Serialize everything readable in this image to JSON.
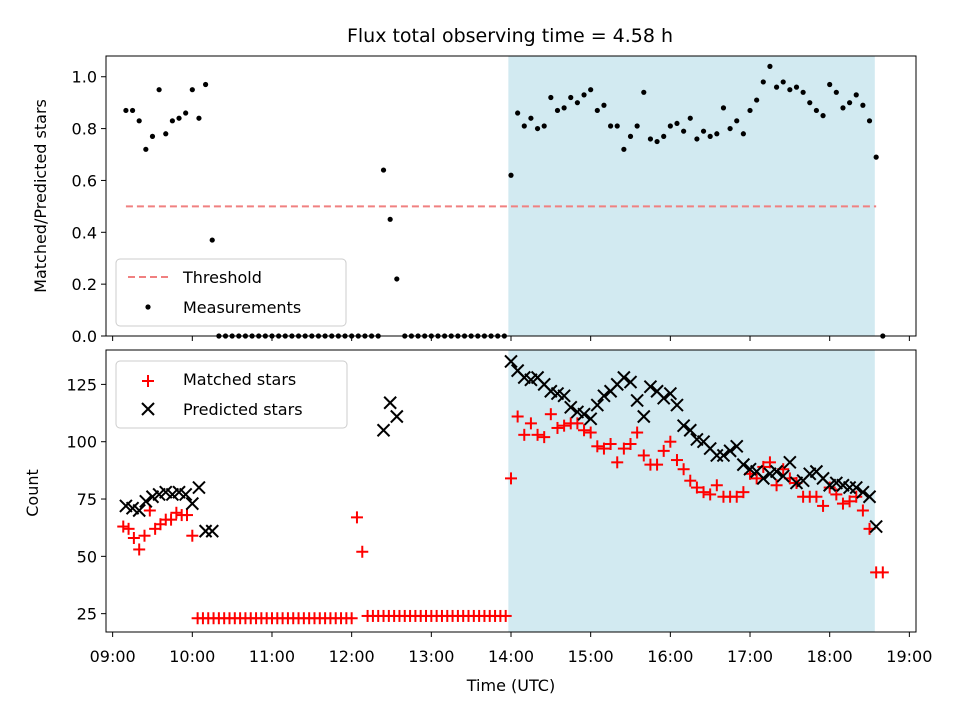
{
  "chart_data": [
    {
      "type": "scatter",
      "title": "Flux total observing time = 4.58 h",
      "xlabel": "",
      "ylabel": "Matched/Predicted stars",
      "xlim": [
        "08:55",
        "19:05"
      ],
      "ylim": [
        0,
        1.08
      ],
      "yticks": [
        "0.0",
        "0.2",
        "0.4",
        "0.6",
        "0.8",
        "1.0"
      ],
      "shaded_region": [
        "13:58",
        "18:34"
      ],
      "shade_color": "#add8e6",
      "legend": "lower-left",
      "threshold": {
        "name": "Threshold",
        "y": 0.5,
        "x_range": [
          "09:10",
          "18:35"
        ],
        "color": "#f08080"
      },
      "series": [
        {
          "name": "Measurements",
          "color": "#000000",
          "x": [
            "09:10",
            "09:15",
            "09:20",
            "09:25",
            "09:30",
            "09:35",
            "09:40",
            "09:45",
            "09:50",
            "09:55",
            "10:00",
            "10:05",
            "10:10",
            "10:15",
            "10:20",
            "10:25",
            "10:30",
            "10:35",
            "10:40",
            "10:45",
            "10:50",
            "10:55",
            "11:00",
            "11:05",
            "11:10",
            "11:15",
            "11:20",
            "11:25",
            "11:30",
            "11:35",
            "11:40",
            "11:45",
            "11:50",
            "11:55",
            "12:00",
            "12:05",
            "12:10",
            "12:15",
            "12:20",
            "12:24",
            "12:29",
            "12:34",
            "12:40",
            "12:45",
            "12:50",
            "12:55",
            "13:00",
            "13:05",
            "13:10",
            "13:15",
            "13:20",
            "13:25",
            "13:30",
            "13:35",
            "13:40",
            "13:45",
            "13:50",
            "13:55",
            "14:00",
            "14:05",
            "14:10",
            "14:15",
            "14:20",
            "14:25",
            "14:30",
            "14:35",
            "14:40",
            "14:45",
            "14:50",
            "14:55",
            "15:00",
            "15:05",
            "15:10",
            "15:15",
            "15:20",
            "15:25",
            "15:30",
            "15:35",
            "15:40",
            "15:45",
            "15:50",
            "15:55",
            "16:00",
            "16:05",
            "16:10",
            "16:15",
            "16:20",
            "16:25",
            "16:30",
            "16:35",
            "16:40",
            "16:45",
            "16:50",
            "16:55",
            "17:00",
            "17:05",
            "17:10",
            "17:15",
            "17:20",
            "17:25",
            "17:30",
            "17:35",
            "17:40",
            "17:45",
            "17:50",
            "17:55",
            "18:00",
            "18:05",
            "18:10",
            "18:15",
            "18:20",
            "18:25",
            "18:30",
            "18:35",
            "18:40"
          ],
          "y": [
            0.87,
            0.87,
            0.83,
            0.72,
            0.77,
            0.95,
            0.78,
            0.83,
            0.84,
            0.86,
            0.95,
            0.84,
            0.97,
            0.37,
            0,
            0,
            0,
            0,
            0,
            0,
            0,
            0,
            0,
            0,
            0,
            0,
            0,
            0,
            0,
            0,
            0,
            0,
            0,
            0,
            0,
            0,
            0,
            0,
            0,
            0.64,
            0.45,
            0.22,
            0,
            0,
            0,
            0,
            0,
            0,
            0,
            0,
            0,
            0,
            0,
            0,
            0,
            0,
            0,
            0,
            0.62,
            0.86,
            0.81,
            0.84,
            0.8,
            0.81,
            0.92,
            0.87,
            0.88,
            0.92,
            0.9,
            0.93,
            0.95,
            0.87,
            0.89,
            0.81,
            0.81,
            0.72,
            0.77,
            0.81,
            0.94,
            0.76,
            0.75,
            0.77,
            0.81,
            0.82,
            0.79,
            0.84,
            0.76,
            0.79,
            0.77,
            0.78,
            0.88,
            0.8,
            0.83,
            0.78,
            0.87,
            0.91,
            0.98,
            1.04,
            0.96,
            0.98,
            0.95,
            0.96,
            0.94,
            0.9,
            0.87,
            0.85,
            0.97,
            0.94,
            0.88,
            0.9,
            0.93,
            0.89,
            0.83,
            0.69,
            0
          ]
        }
      ]
    },
    {
      "type": "scatter",
      "title": "",
      "xlabel": "Time (UTC)",
      "ylabel": "Count",
      "xlim": [
        "08:55",
        "19:05"
      ],
      "ylim": [
        17,
        140
      ],
      "xticks": [
        "09:00",
        "10:00",
        "11:00",
        "12:00",
        "13:00",
        "14:00",
        "15:00",
        "16:00",
        "17:00",
        "18:00",
        "19:00"
      ],
      "yticks": [
        "25",
        "50",
        "75",
        "100",
        "125"
      ],
      "shaded_region": [
        "13:58",
        "18:34"
      ],
      "shade_color": "#add8e6",
      "legend": "upper-left",
      "series": [
        {
          "name": "Matched stars",
          "color": "#ff0000",
          "marker": "plus",
          "x": [
            "09:08",
            "09:12",
            "09:16",
            "09:20",
            "09:24",
            "09:28",
            "09:32",
            "09:36",
            "09:40",
            "09:44",
            "09:48",
            "09:52",
            "09:56",
            "10:00",
            "10:04",
            "10:08",
            "10:12",
            "10:16",
            "10:20",
            "10:24",
            "10:28",
            "10:32",
            "10:36",
            "10:40",
            "10:44",
            "10:48",
            "10:52",
            "10:56",
            "11:00",
            "11:04",
            "11:08",
            "11:12",
            "11:16",
            "11:20",
            "11:24",
            "11:28",
            "11:32",
            "11:36",
            "11:40",
            "11:44",
            "11:48",
            "11:52",
            "11:56",
            "12:00",
            "12:04",
            "12:08",
            "12:12",
            "12:16",
            "12:20",
            "12:24",
            "12:28",
            "12:32",
            "12:36",
            "12:40",
            "12:44",
            "12:48",
            "12:52",
            "12:56",
            "13:00",
            "13:04",
            "13:08",
            "13:12",
            "13:16",
            "13:20",
            "13:24",
            "13:28",
            "13:32",
            "13:36",
            "13:40",
            "13:44",
            "13:48",
            "13:52",
            "13:56",
            "14:00",
            "14:05",
            "14:10",
            "14:15",
            "14:20",
            "14:25",
            "14:30",
            "14:35",
            "14:40",
            "14:45",
            "14:50",
            "14:55",
            "15:00",
            "15:05",
            "15:10",
            "15:15",
            "15:20",
            "15:25",
            "15:30",
            "15:35",
            "15:40",
            "15:45",
            "15:50",
            "15:55",
            "16:00",
            "16:05",
            "16:10",
            "16:15",
            "16:20",
            "16:25",
            "16:30",
            "16:35",
            "16:40",
            "16:45",
            "16:50",
            "16:55",
            "17:00",
            "17:05",
            "17:10",
            "17:15",
            "17:20",
            "17:25",
            "17:30",
            "17:35",
            "17:40",
            "17:45",
            "17:50",
            "17:55",
            "18:00",
            "18:05",
            "18:10",
            "18:15",
            "18:20",
            "18:25",
            "18:30",
            "18:35",
            "18:40"
          ],
          "y": [
            63,
            62,
            58,
            53,
            59,
            70,
            62,
            64,
            66,
            66,
            69,
            68,
            68,
            59,
            23,
            23,
            23,
            23,
            23,
            23,
            23,
            23,
            23,
            23,
            23,
            23,
            23,
            23,
            23,
            23,
            23,
            23,
            23,
            23,
            23,
            23,
            23,
            23,
            23,
            23,
            23,
            23,
            23,
            23,
            67,
            52,
            24,
            24,
            24,
            24,
            24,
            24,
            24,
            24,
            24,
            24,
            24,
            24,
            24,
            24,
            24,
            24,
            24,
            24,
            24,
            24,
            24,
            24,
            24,
            24,
            24,
            24,
            24,
            84,
            111,
            103,
            108,
            103,
            102,
            112,
            106,
            107,
            108,
            108,
            105,
            104,
            98,
            97,
            99,
            91,
            97,
            99,
            104,
            94,
            90,
            90,
            96,
            100,
            92,
            88,
            83,
            80,
            78,
            77,
            81,
            76,
            76,
            76,
            78,
            86,
            84,
            89,
            91,
            81,
            88,
            84,
            82,
            76,
            76,
            76,
            72,
            80,
            77,
            73,
            74,
            76,
            70,
            62,
            43,
            43
          ]
        },
        {
          "name": "Predicted stars",
          "color": "#000000",
          "marker": "x",
          "x": [
            "09:10",
            "09:15",
            "09:20",
            "09:25",
            "09:30",
            "09:35",
            "09:40",
            "09:45",
            "09:50",
            "09:55",
            "10:00",
            "10:05",
            "10:10",
            "10:15",
            "12:24",
            "12:29",
            "12:34",
            "14:00",
            "14:05",
            "14:10",
            "14:15",
            "14:20",
            "14:25",
            "14:30",
            "14:35",
            "14:40",
            "14:45",
            "14:50",
            "14:55",
            "15:00",
            "15:05",
            "15:10",
            "15:15",
            "15:20",
            "15:25",
            "15:30",
            "15:35",
            "15:40",
            "15:45",
            "15:50",
            "15:55",
            "16:00",
            "16:05",
            "16:10",
            "16:15",
            "16:20",
            "16:25",
            "16:30",
            "16:35",
            "16:40",
            "16:45",
            "16:50",
            "16:55",
            "17:00",
            "17:05",
            "17:10",
            "17:15",
            "17:20",
            "17:25",
            "17:30",
            "17:35",
            "17:40",
            "17:45",
            "17:50",
            "17:55",
            "18:00",
            "18:05",
            "18:10",
            "18:15",
            "18:20",
            "18:25",
            "18:30",
            "18:35"
          ],
          "y": [
            72,
            71,
            70,
            74,
            76,
            77,
            78,
            77,
            78,
            77,
            73,
            80,
            61,
            61,
            105,
            117,
            111,
            135,
            131,
            128,
            127,
            128,
            125,
            122,
            121,
            120,
            115,
            113,
            112,
            110,
            116,
            120,
            122,
            125,
            128,
            126,
            118,
            111,
            124,
            122,
            119,
            121,
            116,
            107,
            105,
            101,
            100,
            97,
            94,
            94,
            96,
            98,
            90,
            88,
            87,
            84,
            86,
            87,
            85,
            91,
            82,
            83,
            86,
            87,
            84,
            81,
            82,
            81,
            80,
            80,
            78,
            76,
            63
          ]
        }
      ]
    }
  ]
}
